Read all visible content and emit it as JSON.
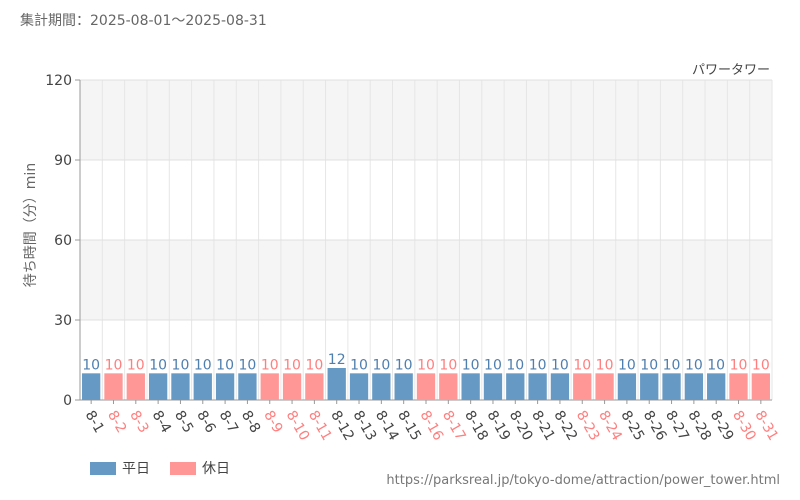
{
  "period_label": "集計期間：2025-08-01～2025-08-31",
  "source_url": "https://parksreal.jp/tokyo-dome/attraction/power_tower.html",
  "colors": {
    "weekday": "#6699c4",
    "holiday": "#ff9797",
    "holiday_text": "#ff7f7f",
    "weekday_text": "#4f7fae",
    "axis_text": "#444444"
  },
  "chart_data": {
    "type": "bar",
    "title": "パワータワー",
    "ylabel": "待ち時間（分）min",
    "ylim": [
      0,
      120
    ],
    "yticks": [
      0,
      30,
      60,
      90,
      120
    ],
    "categories": [
      "8-1",
      "8-2",
      "8-3",
      "8-4",
      "8-5",
      "8-6",
      "8-7",
      "8-8",
      "8-9",
      "8-10",
      "8-11",
      "8-12",
      "8-13",
      "8-14",
      "8-15",
      "8-16",
      "8-17",
      "8-18",
      "8-19",
      "8-20",
      "8-21",
      "8-22",
      "8-23",
      "8-24",
      "8-25",
      "8-26",
      "8-27",
      "8-28",
      "8-29",
      "8-30",
      "8-31"
    ],
    "values": [
      10,
      10,
      10,
      10,
      10,
      10,
      10,
      10,
      10,
      10,
      10,
      12,
      10,
      10,
      10,
      10,
      10,
      10,
      10,
      10,
      10,
      10,
      10,
      10,
      10,
      10,
      10,
      10,
      10,
      10,
      10
    ],
    "day_type": [
      "weekday",
      "holiday",
      "holiday",
      "weekday",
      "weekday",
      "weekday",
      "weekday",
      "weekday",
      "holiday",
      "holiday",
      "holiday",
      "weekday",
      "weekday",
      "weekday",
      "weekday",
      "holiday",
      "holiday",
      "weekday",
      "weekday",
      "weekday",
      "weekday",
      "weekday",
      "holiday",
      "holiday",
      "weekday",
      "weekday",
      "weekday",
      "weekday",
      "weekday",
      "holiday",
      "holiday"
    ],
    "legend": [
      {
        "key": "weekday",
        "label": "平日"
      },
      {
        "key": "holiday",
        "label": "休日"
      }
    ],
    "grid": true,
    "legend_position": "bottom-left"
  }
}
